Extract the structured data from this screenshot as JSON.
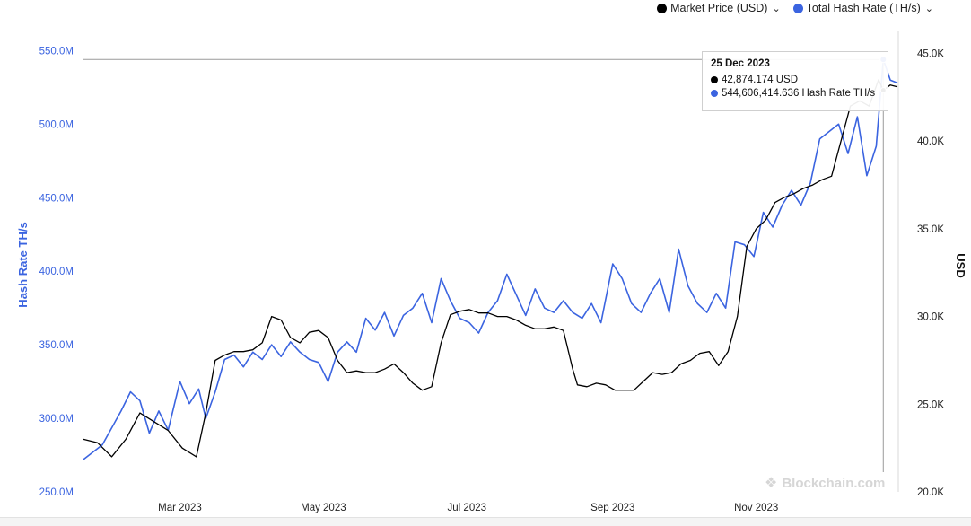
{
  "legend": {
    "market_price": {
      "label": "Market Price (USD)",
      "color": "#000000"
    },
    "hash_rate": {
      "label": "Total Hash Rate (TH/s)",
      "color": "#3b64e0"
    },
    "chevron": "⌄"
  },
  "tooltip": {
    "date": "25 Dec 2023",
    "price_text": "42,874.174 USD",
    "hash_text": "544,606,414.636 Hash Rate TH/s"
  },
  "watermark": "Blockchain.com",
  "chart_data": {
    "type": "line",
    "y_left": {
      "label": "Hash Rate TH/s",
      "range": [
        250,
        560
      ],
      "ticks": [
        250,
        300,
        350,
        400,
        450,
        500,
        550
      ],
      "tick_labels": [
        "250.0M",
        "300.0M",
        "350.0M",
        "400.0M",
        "450.0M",
        "500.0M",
        "550.0M"
      ]
    },
    "y_right": {
      "label": "USD",
      "range": [
        20,
        46
      ],
      "ticks": [
        20,
        25,
        30,
        35,
        40,
        45
      ],
      "tick_labels": [
        "20.0K",
        "25.0K",
        "30.0K",
        "35.0K",
        "40.0K",
        "45.0K"
      ]
    },
    "x_axis": {
      "range": [
        "2023-01-19",
        "2023-12-31"
      ],
      "ticks": [
        "2023-03-01",
        "2023-05-01",
        "2023-07-01",
        "2023-09-01",
        "2023-11-01"
      ],
      "tick_labels": [
        "Mar 2023",
        "May 2023",
        "Jul 2023",
        "Sep 2023",
        "Nov 2023"
      ]
    },
    "series": [
      {
        "name": "Total Hash Rate (TH/s)",
        "axis": "left",
        "color": "#3b64e0",
        "unit": "million TH/s",
        "x": [
          "2023-01-19",
          "2023-01-27",
          "2023-02-04",
          "2023-02-08",
          "2023-02-12",
          "2023-02-16",
          "2023-02-20",
          "2023-02-24",
          "2023-03-01",
          "2023-03-05",
          "2023-03-09",
          "2023-03-12",
          "2023-03-16",
          "2023-03-20",
          "2023-03-24",
          "2023-03-28",
          "2023-04-01",
          "2023-04-05",
          "2023-04-09",
          "2023-04-13",
          "2023-04-17",
          "2023-04-21",
          "2023-04-25",
          "2023-04-29",
          "2023-05-03",
          "2023-05-07",
          "2023-05-11",
          "2023-05-15",
          "2023-05-19",
          "2023-05-23",
          "2023-05-27",
          "2023-05-31",
          "2023-06-04",
          "2023-06-08",
          "2023-06-12",
          "2023-06-16",
          "2023-06-20",
          "2023-06-24",
          "2023-06-28",
          "2023-07-02",
          "2023-07-06",
          "2023-07-10",
          "2023-07-14",
          "2023-07-18",
          "2023-07-22",
          "2023-07-26",
          "2023-07-30",
          "2023-08-03",
          "2023-08-07",
          "2023-08-11",
          "2023-08-15",
          "2023-08-19",
          "2023-08-23",
          "2023-08-27",
          "2023-09-01",
          "2023-09-05",
          "2023-09-09",
          "2023-09-13",
          "2023-09-17",
          "2023-09-21",
          "2023-09-25",
          "2023-09-29",
          "2023-10-03",
          "2023-10-07",
          "2023-10-11",
          "2023-10-15",
          "2023-10-19",
          "2023-10-23",
          "2023-10-27",
          "2023-10-31",
          "2023-11-04",
          "2023-11-08",
          "2023-11-12",
          "2023-11-16",
          "2023-11-20",
          "2023-11-24",
          "2023-11-28",
          "2023-12-02",
          "2023-12-06",
          "2023-12-10",
          "2023-12-14",
          "2023-12-18",
          "2023-12-22",
          "2023-12-25",
          "2023-12-28",
          "2023-12-31"
        ],
        "values": [
          272,
          282,
          305,
          318,
          312,
          290,
          305,
          292,
          325,
          310,
          320,
          300,
          318,
          340,
          343,
          335,
          345,
          340,
          350,
          342,
          352,
          345,
          340,
          338,
          325,
          345,
          352,
          345,
          368,
          360,
          372,
          356,
          370,
          375,
          385,
          365,
          395,
          380,
          368,
          365,
          358,
          372,
          380,
          398,
          384,
          370,
          388,
          375,
          372,
          380,
          372,
          368,
          378,
          365,
          405,
          395,
          378,
          372,
          385,
          395,
          372,
          415,
          390,
          378,
          372,
          385,
          375,
          420,
          418,
          410,
          440,
          430,
          445,
          455,
          445,
          460,
          490,
          495,
          500,
          480,
          505,
          465,
          485,
          544,
          530,
          528
        ]
      },
      {
        "name": "Market Price (USD)",
        "axis": "right",
        "color": "#000000",
        "unit": "thousand USD",
        "x": [
          "2023-01-19",
          "2023-01-25",
          "2023-01-31",
          "2023-02-06",
          "2023-02-12",
          "2023-02-18",
          "2023-02-24",
          "2023-03-02",
          "2023-03-08",
          "2023-03-12",
          "2023-03-16",
          "2023-03-20",
          "2023-03-24",
          "2023-03-28",
          "2023-04-01",
          "2023-04-05",
          "2023-04-09",
          "2023-04-13",
          "2023-04-17",
          "2023-04-21",
          "2023-04-25",
          "2023-04-29",
          "2023-05-03",
          "2023-05-07",
          "2023-05-11",
          "2023-05-15",
          "2023-05-19",
          "2023-05-23",
          "2023-05-27",
          "2023-05-31",
          "2023-06-04",
          "2023-06-08",
          "2023-06-12",
          "2023-06-16",
          "2023-06-20",
          "2023-06-24",
          "2023-06-28",
          "2023-07-02",
          "2023-07-06",
          "2023-07-10",
          "2023-07-14",
          "2023-07-18",
          "2023-07-22",
          "2023-07-26",
          "2023-07-30",
          "2023-08-03",
          "2023-08-07",
          "2023-08-11",
          "2023-08-15",
          "2023-08-17",
          "2023-08-21",
          "2023-08-25",
          "2023-08-29",
          "2023-09-02",
          "2023-09-06",
          "2023-09-10",
          "2023-09-14",
          "2023-09-18",
          "2023-09-22",
          "2023-09-26",
          "2023-09-30",
          "2023-10-04",
          "2023-10-08",
          "2023-10-12",
          "2023-10-16",
          "2023-10-20",
          "2023-10-24",
          "2023-10-28",
          "2023-11-01",
          "2023-11-05",
          "2023-11-09",
          "2023-11-13",
          "2023-11-17",
          "2023-11-21",
          "2023-11-25",
          "2023-11-29",
          "2023-12-03",
          "2023-12-07",
          "2023-12-11",
          "2023-12-15",
          "2023-12-19",
          "2023-12-23",
          "2023-12-25",
          "2023-12-28",
          "2023-12-31"
        ],
        "values": [
          23.0,
          22.8,
          22.0,
          23.0,
          24.5,
          24.0,
          23.5,
          22.5,
          22.0,
          24.5,
          27.5,
          27.8,
          28.0,
          28.0,
          28.1,
          28.5,
          30.0,
          29.8,
          28.8,
          28.5,
          29.1,
          29.2,
          28.8,
          27.5,
          26.8,
          26.9,
          26.8,
          26.8,
          27.0,
          27.3,
          26.8,
          26.2,
          25.8,
          26.0,
          28.5,
          30.1,
          30.3,
          30.4,
          30.2,
          30.2,
          30.0,
          30.0,
          29.8,
          29.5,
          29.3,
          29.3,
          29.4,
          29.2,
          27.0,
          26.1,
          26.0,
          26.2,
          26.1,
          25.8,
          25.8,
          25.8,
          26.3,
          26.8,
          26.7,
          26.8,
          27.3,
          27.5,
          27.9,
          28.0,
          27.2,
          28.0,
          30.0,
          34.0,
          35.0,
          35.5,
          36.5,
          36.8,
          37.0,
          37.3,
          37.5,
          37.8,
          38.0,
          40.0,
          42.0,
          42.3,
          42.0,
          43.5,
          42.9,
          43.2,
          43.1
        ]
      }
    ]
  }
}
